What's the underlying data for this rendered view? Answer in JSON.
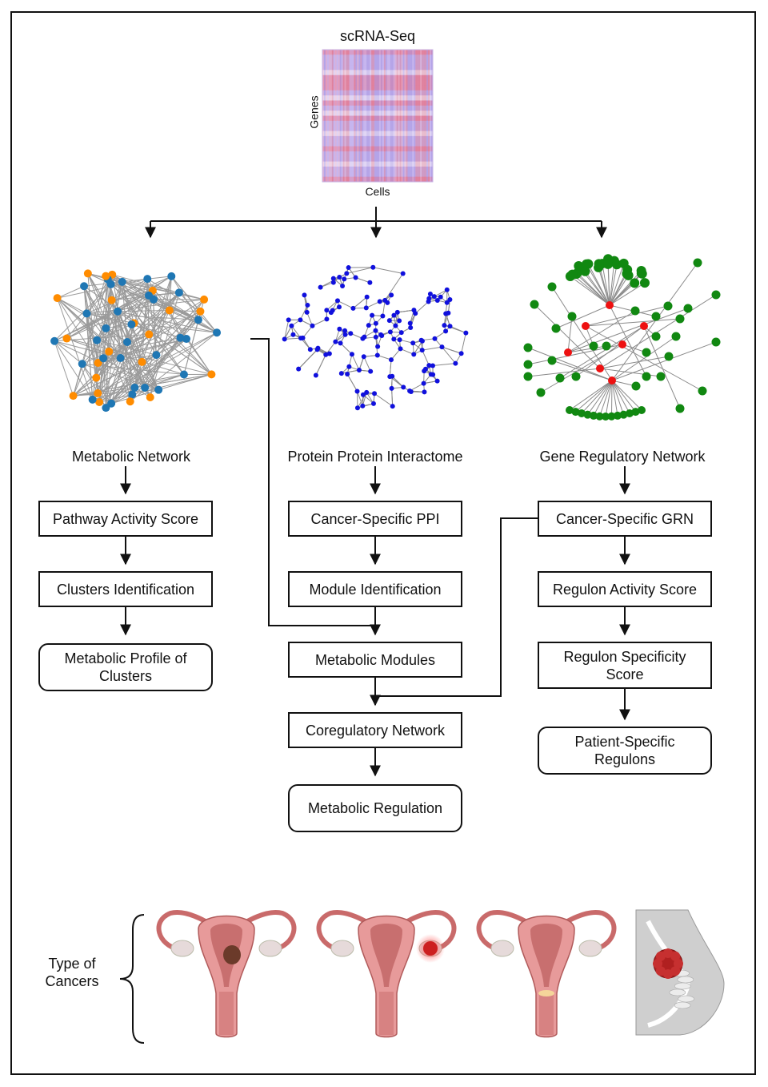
{
  "heatmap": {
    "title": "scRNA-Seq",
    "y_label": "Genes",
    "x_label": "Cells"
  },
  "networks": {
    "metabolic": {
      "label": "Metabolic Network",
      "colors": [
        "#1f77b4",
        "#ff8c00"
      ]
    },
    "ppi": {
      "label": "Protein Protein Interactome",
      "colors": [
        "#1010dd"
      ]
    },
    "grn": {
      "label": "Gene Regulatory Network",
      "colors": [
        "#118811",
        "#ee1111"
      ]
    }
  },
  "metabolic_column": {
    "pathway": "Pathway Activity Score",
    "clusters": "Clusters Identification",
    "profile": "Metabolic Profile of Clusters"
  },
  "ppi_column": {
    "cancer_ppi": "Cancer-Specific PPI",
    "module_id": "Module Identification",
    "metabolic_modules": "Metabolic Modules",
    "coreg_network": "Coregulatory Network",
    "metabolic_regulation": "Metabolic Regulation"
  },
  "grn_column": {
    "cancer_grn": "Cancer-Specific GRN",
    "regulon_activity": "Regulon Activity Score",
    "regulon_specificity": "Regulon Specificity Score",
    "patient_regulons": "Patient-Specific Regulons"
  },
  "cancers": {
    "label": "Type of Cancers",
    "icons": [
      "uterus-tumor-icon",
      "ovary-tumor-icon",
      "cervix-tumor-icon",
      "breast-tumor-icon"
    ]
  }
}
